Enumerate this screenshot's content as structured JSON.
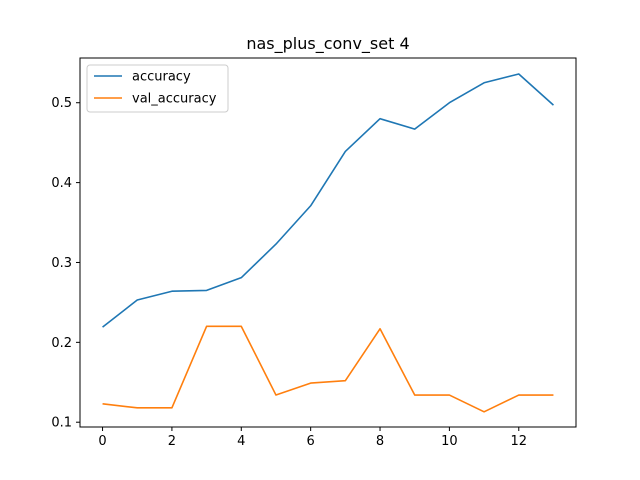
{
  "chart_data": {
    "type": "line",
    "title": "nas_plus_conv_set 4",
    "xlabel": "",
    "ylabel": "",
    "x": [
      0,
      1,
      2,
      3,
      4,
      5,
      6,
      7,
      8,
      9,
      10,
      11,
      12,
      13
    ],
    "xlim": [
      -0.65,
      13.65
    ],
    "ylim": [
      0.094,
      0.556
    ],
    "xticks": [
      0,
      2,
      4,
      6,
      8,
      10,
      12
    ],
    "yticks": [
      0.1,
      0.2,
      0.3,
      0.4,
      0.5
    ],
    "grid": false,
    "legend_position": "top-left",
    "series": [
      {
        "name": "accuracy",
        "color": "#1f77b4",
        "values": [
          0.219,
          0.253,
          0.264,
          0.265,
          0.281,
          0.323,
          0.371,
          0.439,
          0.48,
          0.467,
          0.5,
          0.525,
          0.536,
          0.497
        ]
      },
      {
        "name": "val_accuracy",
        "color": "#ff7f0e",
        "values": [
          0.123,
          0.118,
          0.118,
          0.22,
          0.22,
          0.134,
          0.149,
          0.152,
          0.217,
          0.134,
          0.134,
          0.113,
          0.134,
          0.134
        ]
      }
    ]
  }
}
